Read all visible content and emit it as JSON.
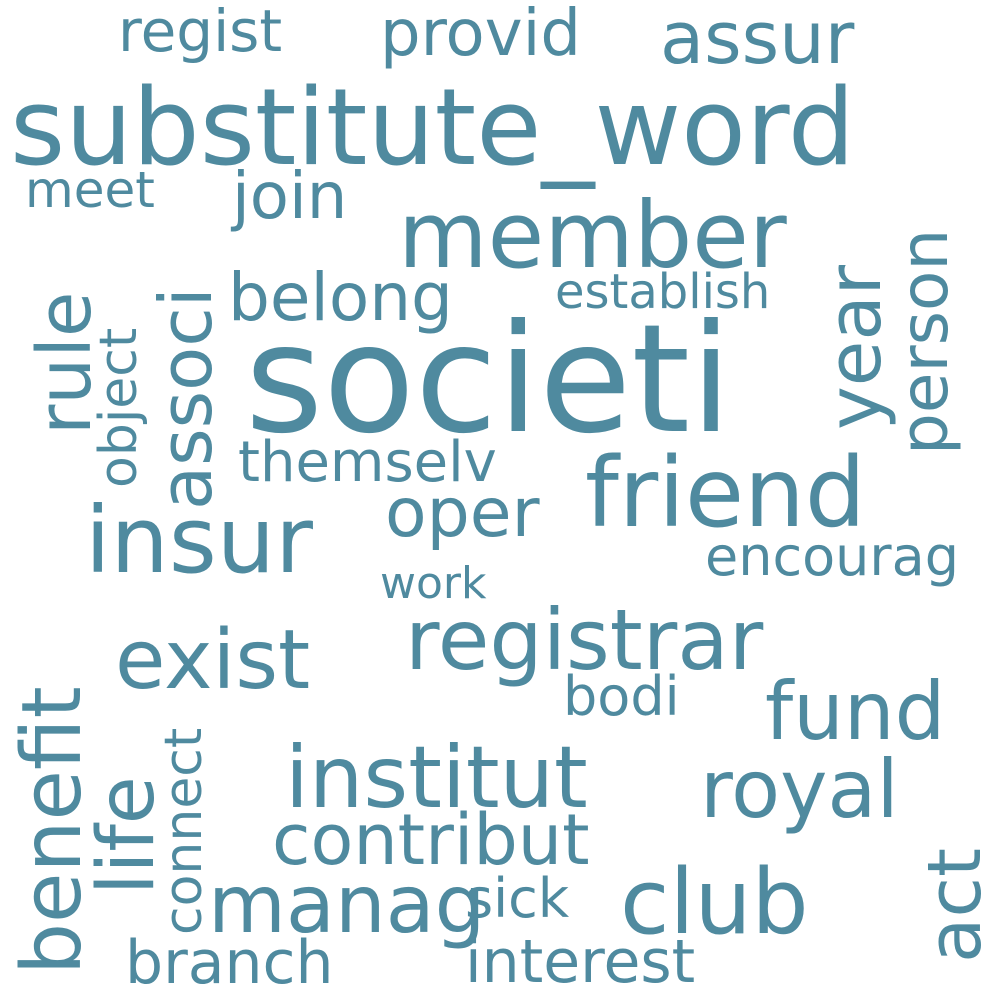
{
  "colors": {
    "word": "#4f8a9f",
    "background": "#ffffff"
  },
  "words": {
    "societi": "societi",
    "substitute_word": "substitute_word",
    "member": "member",
    "friend": "friend",
    "registrar": "registrar",
    "insur": "insur",
    "institut": "institut",
    "benefit": "benefit",
    "club": "club",
    "royal": "royal",
    "manag": "manag",
    "fund": "fund",
    "exist": "exist",
    "rule": "rule",
    "associ": "associ",
    "person": "person",
    "year": "year",
    "contribut": "contribut",
    "life": "life",
    "assur": "assur",
    "provid": "provid",
    "oper": "oper",
    "belong": "belong",
    "join": "join",
    "act": "act",
    "regist": "regist",
    "branch": "branch",
    "interest": "interest",
    "encourag": "encourag",
    "themselv": "themselv",
    "bodi": "bodi",
    "meet": "meet",
    "establish": "establish",
    "object": "object",
    "sick": "sick",
    "connect": "connect",
    "work": "work"
  }
}
